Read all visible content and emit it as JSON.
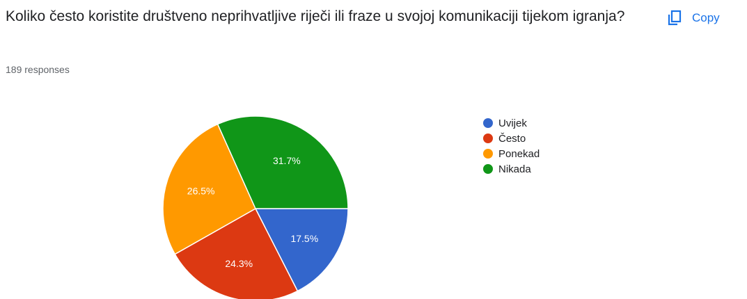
{
  "question": {
    "title": "Koliko često koristite društveno neprihvatljive riječi ili fraze u svojoj komunikaciji tijekom igranja?",
    "responses": "189 responses"
  },
  "toolbar": {
    "copy_label": "Copy",
    "copy_icon": "copy-icon"
  },
  "colors": {
    "accent": "#1a73e8"
  },
  "chart_data": {
    "type": "pie",
    "categories": [
      "Uvijek",
      "Često",
      "Ponekad",
      "Nikada"
    ],
    "values": [
      17.5,
      24.3,
      26.5,
      31.7
    ],
    "labels": [
      "17.5%",
      "24.3%",
      "26.5%",
      "31.7%"
    ],
    "colors": [
      "#3366cc",
      "#dc3912",
      "#ff9900",
      "#109618"
    ],
    "legend": "right",
    "start_angle": "3 o'clock, clockwise"
  }
}
